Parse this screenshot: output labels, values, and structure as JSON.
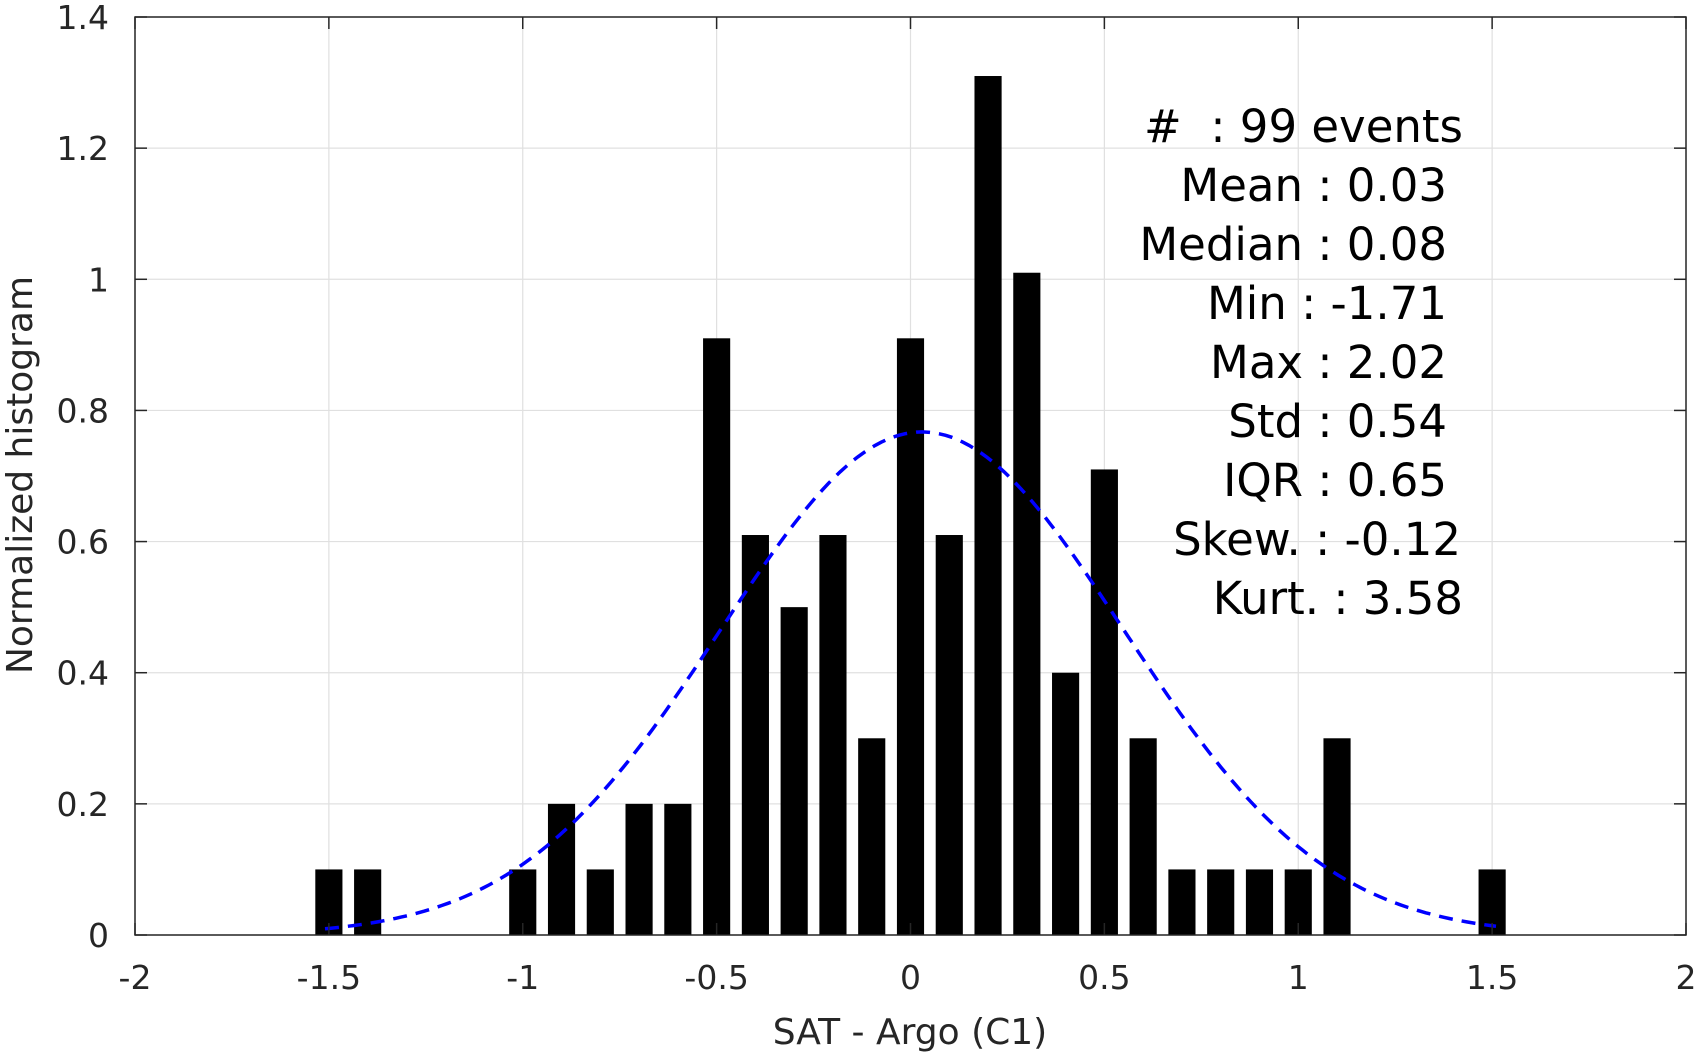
{
  "chart_data": {
    "type": "bar",
    "xlabel": "SAT - Argo (C1)",
    "ylabel": "Normalized histogram",
    "xlim": [
      -2,
      2
    ],
    "ylim": [
      0,
      1.4
    ],
    "xticks": [
      "-2",
      "-1.5",
      "-1",
      "-0.5",
      "0",
      "0.5",
      "1",
      "1.5",
      "2"
    ],
    "yticks": [
      "0",
      "0.2",
      "0.4",
      "0.6",
      "0.8",
      "1",
      "1.2",
      "1.4"
    ],
    "grid": true,
    "bar_width": 0.07,
    "bars": [
      {
        "x": -1.5,
        "y": 0.1
      },
      {
        "x": -1.4,
        "y": 0.1
      },
      {
        "x": -1.0,
        "y": 0.1
      },
      {
        "x": -0.9,
        "y": 0.2
      },
      {
        "x": -0.8,
        "y": 0.1
      },
      {
        "x": -0.7,
        "y": 0.2
      },
      {
        "x": -0.6,
        "y": 0.2
      },
      {
        "x": -0.5,
        "y": 0.91
      },
      {
        "x": -0.4,
        "y": 0.61
      },
      {
        "x": -0.3,
        "y": 0.5
      },
      {
        "x": -0.2,
        "y": 0.61
      },
      {
        "x": -0.1,
        "y": 0.3
      },
      {
        "x": 0.0,
        "y": 0.91
      },
      {
        "x": 0.1,
        "y": 0.61
      },
      {
        "x": 0.2,
        "y": 1.31
      },
      {
        "x": 0.3,
        "y": 1.01
      },
      {
        "x": 0.4,
        "y": 0.4
      },
      {
        "x": 0.5,
        "y": 0.71
      },
      {
        "x": 0.6,
        "y": 0.3
      },
      {
        "x": 0.7,
        "y": 0.1
      },
      {
        "x": 0.8,
        "y": 0.1
      },
      {
        "x": 0.9,
        "y": 0.1
      },
      {
        "x": 1.0,
        "y": 0.1
      },
      {
        "x": 1.1,
        "y": 0.3
      },
      {
        "x": 1.5,
        "y": 0.1
      }
    ],
    "gaussian_fit": {
      "mean": 0.03,
      "std": 0.52,
      "xrange": [
        -1.51,
        1.51
      ],
      "color": "#0000ff",
      "style": "dashed"
    },
    "bar_color": "#000000",
    "stats_box": [
      "#  : 99 events",
      "Mean : 0.03",
      "Median : 0.08",
      "Min : -1.71",
      "Max : 2.02",
      "Std : 0.54",
      "IQR : 0.65",
      "Skew. : -0.12",
      "Kurt. : 3.58"
    ]
  }
}
